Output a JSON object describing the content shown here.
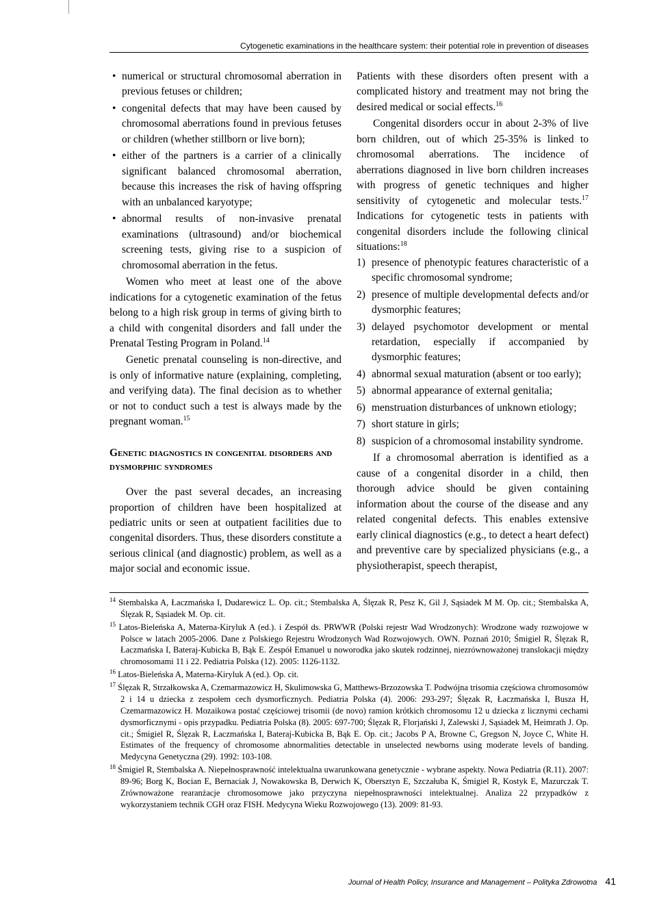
{
  "header": {
    "running_title": "Cytogenetic examinations in the healthcare system: their potential role in prevention of diseases"
  },
  "col_left": {
    "bullets": [
      "numerical or structural chromosomal aberration in previous fetuses or children;",
      "congenital defects that may have been caused by chromosomal aberrations found in previous fetuses or children (whether stillborn or live born);",
      "either of the partners is a carrier of a clinically significant balanced chromosomal aberration, because this increases the risk of having offspring with an unbalanced karyotype;",
      "abnormal results of non-invasive prenatal examinations (ultrasound) and/or biochemical screening tests, giving rise to a suspicion of chromosomal aberration in the fetus."
    ],
    "p1": "Women who meet at least one of the above indications for a cytogenetic examination of the fetus belong to a high risk group in terms of giving birth to a child with congenital disorders and fall under the Prenatal Testing Program in Poland.",
    "p1_note": "14",
    "p2": "Genetic prenatal counseling is non-directive, and is only of informative nature (explaining, completing, and verifying data). The final decision as to whether or not to conduct such a test is always made by the pregnant woman.",
    "p2_note": "15",
    "heading": "Genetic diagnostics in congenital disorders and dysmorphic syndromes",
    "p3": "Over the past several decades, an increasing proportion of children have been hospitalized at pediatric units or seen at outpatient facilities due to congenital disorders. Thus, these disorders constitute a serious clinical (and diagnostic) problem, as well as a major social and economic issue."
  },
  "col_right": {
    "p1": "Patients with these disorders often present with a complicated history and treatment may not bring the desired medical or social effects.",
    "p1_note": "16",
    "p2a": "Congenital disorders occur in about 2-3% of live born children, out of which 25-35% is linked to chromosomal aberrations. The incidence of aberrations diagnosed in live born children increases with progress of genetic techniques and higher sensitivity of cytogenetic and molecular tests.",
    "p2a_note": "17",
    "p2b": " Indications for cytogenetic tests in patients with congenital disorders include the following clinical situations:",
    "p2b_note": "18",
    "list": [
      {
        "n": "1)",
        "t": "presence of phenotypic features characteristic of a specific chromosomal syndrome;"
      },
      {
        "n": "2)",
        "t": "presence of multiple developmental defects and/or dysmorphic features;"
      },
      {
        "n": "3)",
        "t": "delayed psychomotor development or mental retardation, especially if accompanied by dysmorphic features;"
      },
      {
        "n": "4)",
        "t": "abnormal sexual maturation (absent or too early);"
      },
      {
        "n": "5)",
        "t": "abnormal appearance of external genitalia;"
      },
      {
        "n": "6)",
        "t": "menstruation disturbances of unknown etiology;"
      },
      {
        "n": "7)",
        "t": "short stature in girls;"
      },
      {
        "n": "8)",
        "t": "suspicion of a chromosomal instability syndrome."
      }
    ],
    "p3": "If a chromosomal aberration is identified as a cause of a congenital disorder in a child, then thorough advice should be given containing information about the course of the disease and any related congenital defects. This enables extensive early clinical diagnostics (e.g., to detect a heart defect) and preventive care by specialized physicians (e.g., a physiotherapist, speech therapist,"
  },
  "footnotes": [
    {
      "n": "14",
      "t": "Stembalska A, Łaczmańska I, Dudarewicz L. Op. cit.; Stembalska A, Ślęzak R, Pesz K, Gil J, Sąsiadek M M. Op. cit.; Stembalska A, Ślęzak R, Sąsiadek M. Op. cit."
    },
    {
      "n": "15",
      "t": "Latos-Bieleńska A, Materna-Kiryluk A (ed.). i Zespół ds. PRWWR (Polski rejestr Wad Wrodzonych): Wrodzone wady rozwojowe w Polsce w latach 2005-2006. Dane z Polskiego Rejestru Wrodzonych Wad Rozwojowych. OWN. Poznań 2010; Śmigiel R, Ślęzak R, Łaczmańska I, Bateraj-Kubicka B, Bąk E. Zespół Emanuel u noworodka jako skutek rodzinnej, niezrównoważonej translokacji między chromosomami 11 i 22. Pediatria Polska (12). 2005: 1126-1132."
    },
    {
      "n": "16",
      "t": "Latos-Bieleńska A, Materna-Kiryluk A (ed.). Op. cit."
    },
    {
      "n": "17",
      "t": "Ślęzak R, Strzałkowska A, Czemarmazowicz H, Skulimowska G, Matthews-Brzozowska T. Podwójna trisomia częściowa chromosomów 2 i 14 u dziecka z zespołem cech dysmorficznych. Pediatria Polska (4). 2006: 293-297; Ślęzak R, Łaczmańska I, Busza H, Czemarmazowicz H. Mozaikowa postać częściowej trisomii (de novo) ramion krótkich chromosomu 12 u dziecka z licznymi cechami dysmorficznymi - opis przypadku. Pediatria Polska (8). 2005: 697-700; Ślęzak R, Florjański J, Zalewski J, Sąsiadek M, Heimrath J. Op. cit.; Śmigiel R, Ślęzak R, Łaczmańska I, Bateraj-Kubicka B, Bąk E. Op. cit.; Jacobs P A, Browne C, Gregson N, Joyce C, White H. Estimates of the frequency of chromosome abnormalities detectable in unselected newborns using moderate levels of banding. Medycyna Genetyczna (29). 1992: 103-108."
    },
    {
      "n": "18",
      "t": "Śmigiel R, Stembalska A. Niepełnosprawność intelektualna uwarunkowana genetycznie - wybrane aspekty. Nowa Pediatria (R.11). 2007: 89-96; Borg K, Bocian E, Bernaciak J, Nowakowska B, Derwich K, Obersztyn E, Szczałuba K, Śmigiel R, Kostyk E, Mazurczak T. Zrównoważone rearanżacje chromosomowe jako przyczyna niepełnosprawności intelektualnej. Analiza 22 przypadków z wykorzystaniem technik CGH oraz FISH. Medycyna Wieku Rozwojowego (13). 2009: 81-93."
    }
  ],
  "footer": {
    "journal": "Journal of Health Policy, Insurance and Management – Polityka Zdrowotna",
    "pageno": "41"
  }
}
